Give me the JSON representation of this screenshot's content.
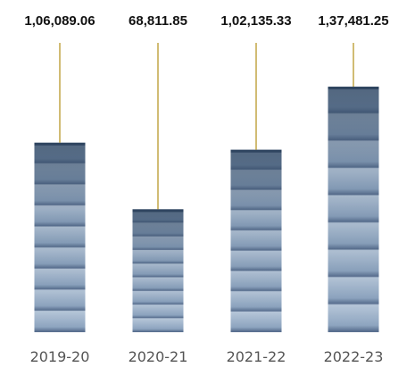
{
  "chart_data": {
    "type": "bar",
    "categories": [
      "2019-20",
      "2020-21",
      "2021-22",
      "2022-23"
    ],
    "values": [
      106089.06,
      68811.85,
      102135.33,
      137481.25
    ],
    "value_labels": [
      "1,06,089.06",
      "68,811.85",
      "1,02,135.33",
      "1,37,481.25"
    ],
    "title": "",
    "xlabel": "",
    "ylabel": "",
    "ylim": [
      0,
      155000
    ],
    "grid": false,
    "legend": "none"
  },
  "colors": {
    "bar_light": "#b9c9db",
    "bar_mid": "#8ea5c0",
    "bar_dark": "#2f4560",
    "leader_line": "#b8982a",
    "value_text": "#111111",
    "category_text": "#555555"
  }
}
